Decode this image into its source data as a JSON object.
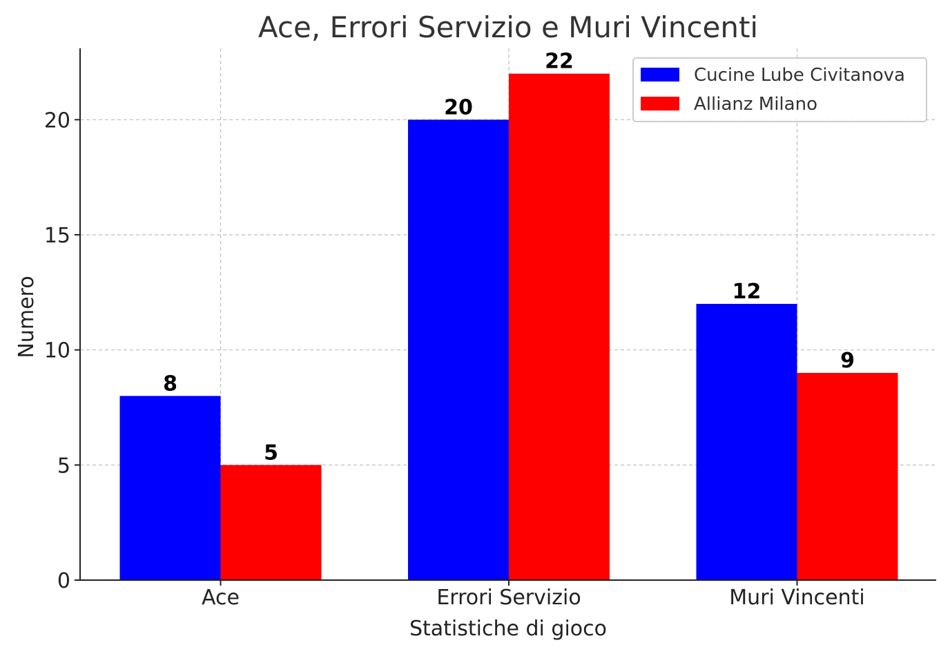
{
  "chart_data": {
    "type": "bar",
    "title": "Ace, Errori Servizio e Muri Vincenti",
    "xlabel": "Statistiche di gioco",
    "ylabel": "Numero",
    "categories": [
      "Ace",
      "Errori Servizio",
      "Muri Vincenti"
    ],
    "series": [
      {
        "name": "Cucine Lube Civitanova",
        "color": "#0000ff",
        "values": [
          8,
          20,
          12
        ]
      },
      {
        "name": "Allianz Milano",
        "color": "#ff0000",
        "values": [
          5,
          22,
          9
        ]
      }
    ],
    "ylim": [
      0,
      23.1
    ],
    "yticks": [
      0,
      5,
      10,
      15,
      20
    ],
    "grid": true,
    "legend_position": "top-right"
  }
}
